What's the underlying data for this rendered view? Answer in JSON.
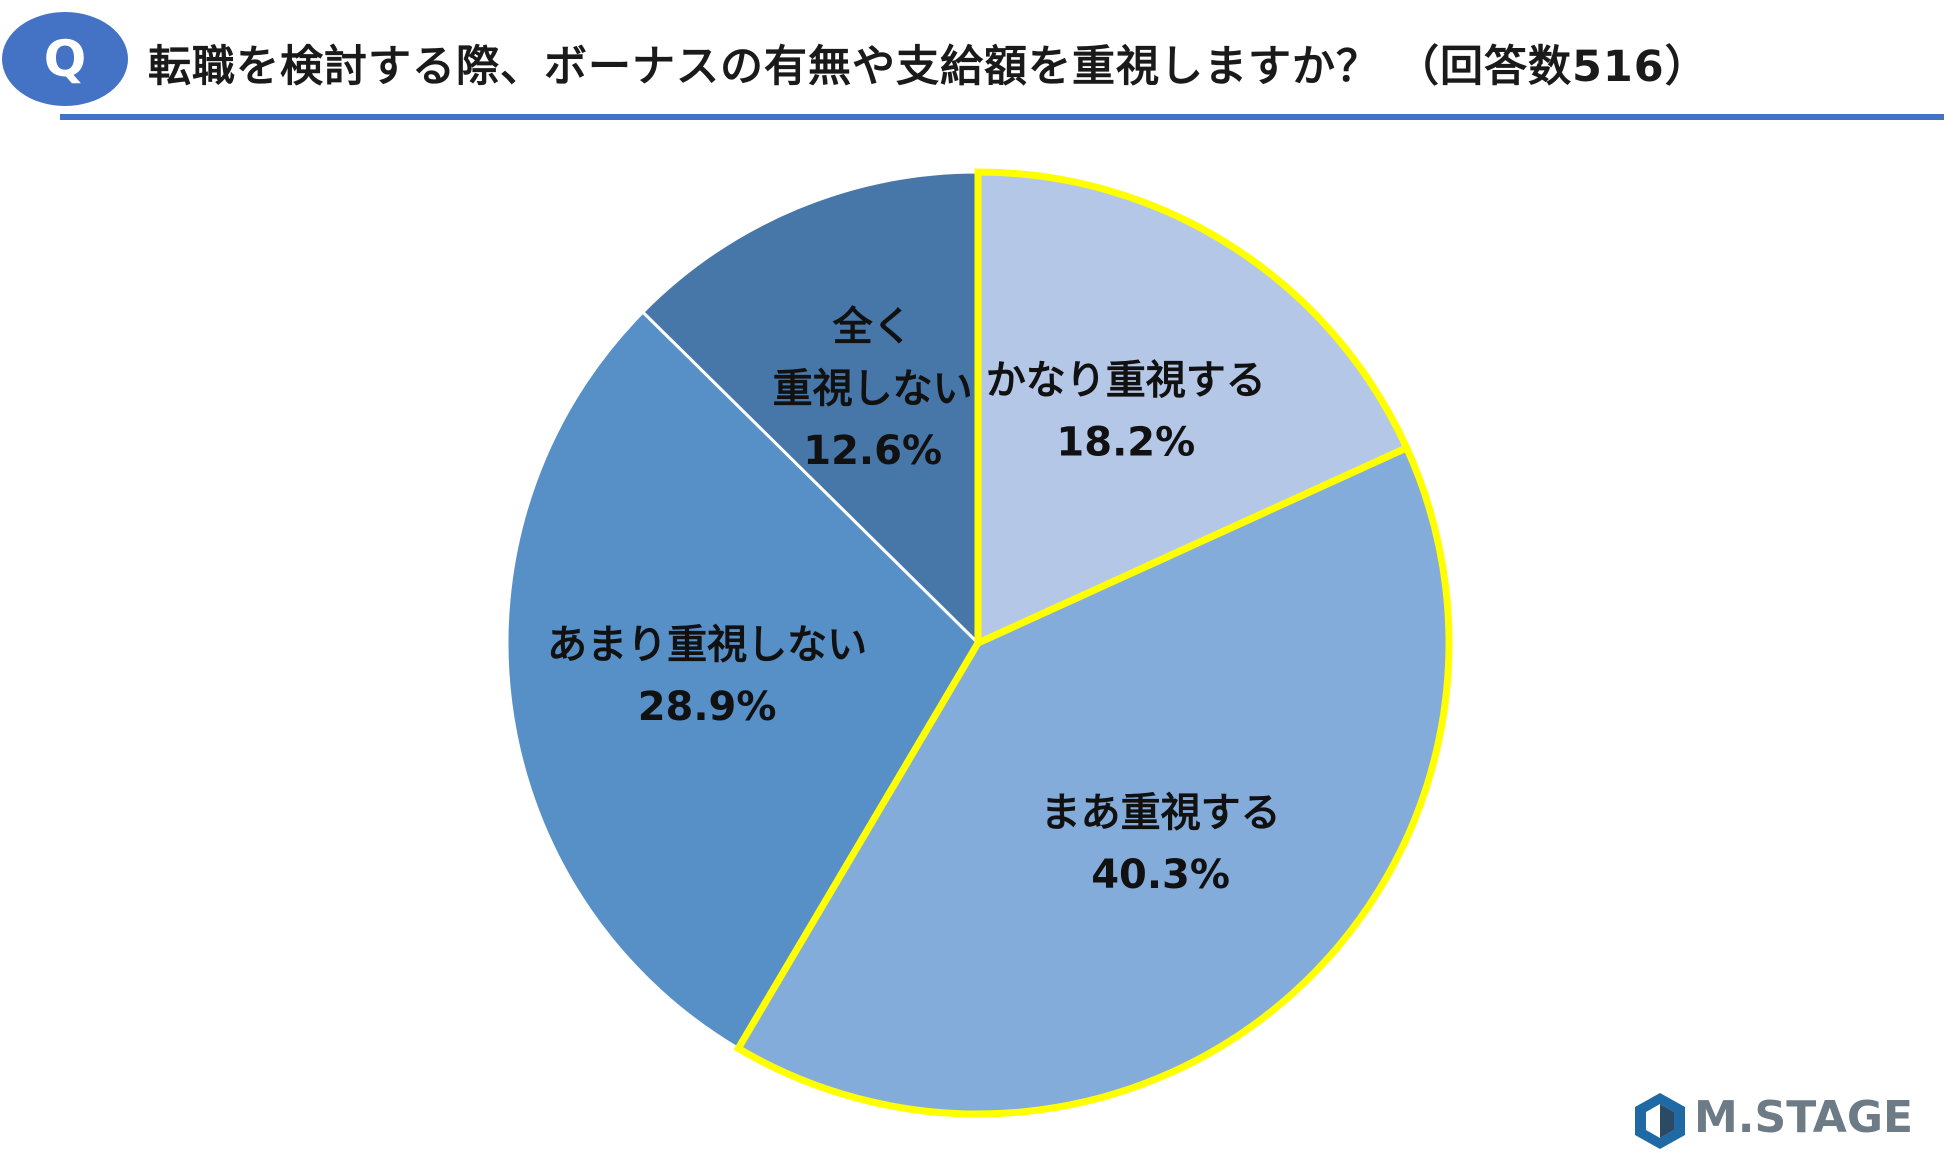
{
  "header": {
    "badge": "Q",
    "title": "転職を検討する際、ボーナスの有無や支給額を重視しますか？ （回答数516）"
  },
  "chart_data": {
    "type": "pie",
    "title": "転職を検討する際、ボーナスの有無や支給額を重視しますか？ （回答数516）",
    "slices": [
      {
        "label": [
          "かなり重視する"
        ],
        "value": 18.2,
        "display": "18.2%",
        "color": "#b4c7e7",
        "highlight": true
      },
      {
        "label": [
          "まあ重視する"
        ],
        "value": 40.3,
        "display": "40.3%",
        "color": "#84acdb",
        "highlight": true
      },
      {
        "label": [
          "あまり重視しない"
        ],
        "value": 28.9,
        "display": "28.9%",
        "color": "#5690c7",
        "highlight": false
      },
      {
        "label": [
          "全く",
          "重視しない"
        ],
        "value": 12.6,
        "display": "12.6%",
        "color": "#4677a8",
        "highlight": false
      }
    ],
    "highlight_color": "#ffff00",
    "start": "12 o'clock",
    "direction": "clockwise"
  },
  "logo": {
    "text": "M.STAGE",
    "color": "#6d7b86"
  }
}
